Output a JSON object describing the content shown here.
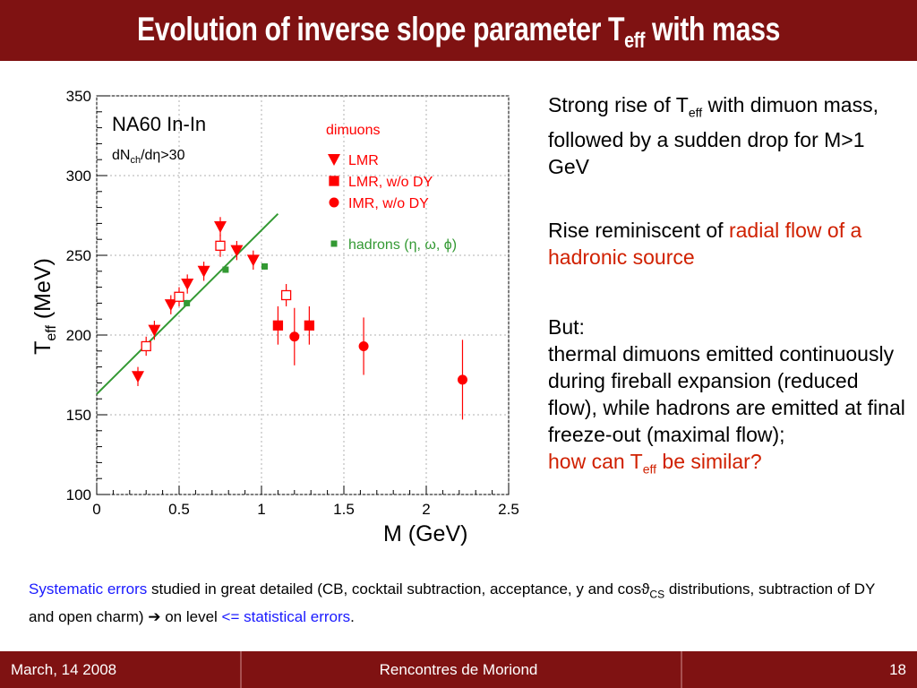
{
  "slide": {
    "title_main": "Evolution of inverse slope parameter T",
    "title_sub": "eff",
    "title_end": " with mass"
  },
  "right_panel": {
    "p1_a": "Strong rise of T",
    "p1_sub": "eff",
    "p1_b": " with dimuon mass, followed by a sudden drop for M>1 GeV",
    "p2_a": "Rise reminiscent of ",
    "p2_red": "radial flow of a hadronic source",
    "p3_a": "But:",
    "p3_b": "thermal dimuons emitted continuously during fireball expansion (reduced flow), while hadrons are emitted at final freeze-out (maximal flow);",
    "p3_red_a": "how can T",
    "p3_red_sub": "eff",
    "p3_red_b": " be  similar?"
  },
  "note": {
    "blue_a": "Systematic errors",
    "text_a": " studied in great detailed (CB, cocktail subtraction, acceptance, y and cos",
    "theta": "ϑ",
    "sub_cs": "CS",
    "text_b": " distributions, subtraction of DY and open charm) ",
    "arrow": "➔",
    "text_c": "  on level ",
    "blue_b": "<= statistical errors",
    "text_d": "."
  },
  "footer": {
    "date": "March, 14 2008",
    "conference": "Rencontres de Moriond",
    "page": "18"
  },
  "chart_data": {
    "type": "scatter",
    "title": "NA60 In-In",
    "subtitle": "dN_ch/dη>30",
    "xlabel": "M (GeV)",
    "ylabel": "T_eff (MeV)",
    "xlim": [
      0,
      2.5
    ],
    "ylim": [
      100,
      350
    ],
    "xticks": [
      0,
      0.5,
      1,
      1.5,
      2,
      2.5
    ],
    "xtick_labels": [
      "0",
      "0.5",
      "1",
      "1.5",
      "2",
      "2.5"
    ],
    "yticks": [
      100,
      150,
      200,
      250,
      300,
      350
    ],
    "grid": true,
    "legend_header": "dimuons",
    "legend_position": "top-right",
    "colors": {
      "dimuon": "#ff0000",
      "hadron": "#339933",
      "grid": "#b0b0b0"
    },
    "series": [
      {
        "name": "LMR",
        "marker": "triangle-down",
        "filled": true,
        "points": [
          [
            0.25,
            174,
            6
          ],
          [
            0.35,
            203,
            6
          ],
          [
            0.45,
            219,
            6
          ],
          [
            0.55,
            232,
            6
          ],
          [
            0.65,
            240,
            6
          ],
          [
            0.75,
            268,
            6
          ],
          [
            0.85,
            253,
            6
          ],
          [
            0.95,
            247,
            6
          ]
        ]
      },
      {
        "name": "LMR, w/o DY",
        "marker": "square",
        "filled": true,
        "points": [
          [
            1.1,
            206,
            12
          ],
          [
            1.29,
            206,
            12
          ]
        ]
      },
      {
        "name": "",
        "marker": "square",
        "filled": false,
        "points": [
          [
            0.3,
            193,
            6
          ],
          [
            0.5,
            224,
            6
          ],
          [
            0.75,
            256,
            7
          ],
          [
            1.15,
            225,
            7
          ]
        ]
      },
      {
        "name": "IMR,  w/o DY",
        "marker": "circle",
        "filled": true,
        "points": [
          [
            1.2,
            199,
            18
          ],
          [
            1.62,
            193,
            18
          ],
          [
            2.22,
            172,
            25
          ]
        ]
      },
      {
        "name": "hadrons (η, ω, ϕ)",
        "marker": "square-small",
        "filled": true,
        "color": "hadron",
        "points": [
          [
            0.547,
            220,
            2
          ],
          [
            0.782,
            241,
            2
          ],
          [
            1.019,
            243,
            2
          ]
        ]
      }
    ],
    "hadron_fit_line": {
      "x": [
        0,
        1.1
      ],
      "y": [
        163,
        276
      ]
    }
  }
}
